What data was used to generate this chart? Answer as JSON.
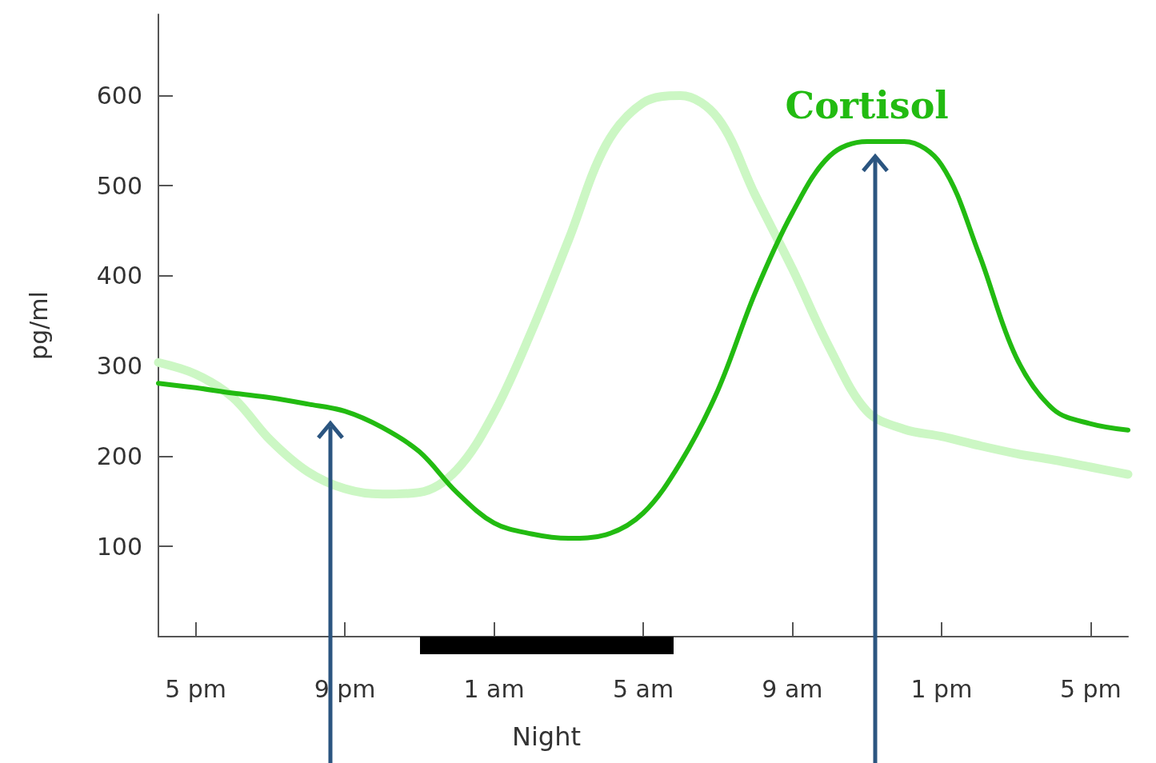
{
  "chart_data": {
    "type": "line",
    "ylabel": "pg/ml",
    "ylim": [
      0,
      690
    ],
    "categories": [
      null,
      "5 pm",
      null,
      null,
      null,
      "9 pm",
      null,
      null,
      null,
      "1 am",
      null,
      null,
      null,
      "5 am",
      null,
      null,
      null,
      "9 am",
      null,
      null,
      null,
      "1 pm",
      null,
      null,
      null,
      "5 pm",
      null
    ],
    "yticks": [
      100,
      200,
      300,
      400,
      500,
      600
    ],
    "grid": false,
    "legend": false,
    "marker": "none",
    "line_style": "solid",
    "annotations": [
      "Night"
    ],
    "series": [
      {
        "color": "#ccf7c4",
        "values": [
          304,
          291,
          265,
          218,
          183,
          164,
          158,
          160,
          185,
          248,
          338,
          440,
          545,
          592,
          600,
          575,
          490,
          408,
          320,
          250,
          230,
          222,
          212,
          203,
          196,
          188,
          180
        ]
      },
      {
        "name": "Cortisol",
        "color": "#22bb11",
        "values": [
          281,
          276,
          270,
          265,
          258,
          250,
          232,
          205,
          160,
          126,
          114,
          109,
          113,
          137,
          193,
          273,
          381,
          470,
          533,
          549,
          549,
          523,
          425,
          310,
          252,
          236,
          229
        ]
      }
    ]
  }
}
